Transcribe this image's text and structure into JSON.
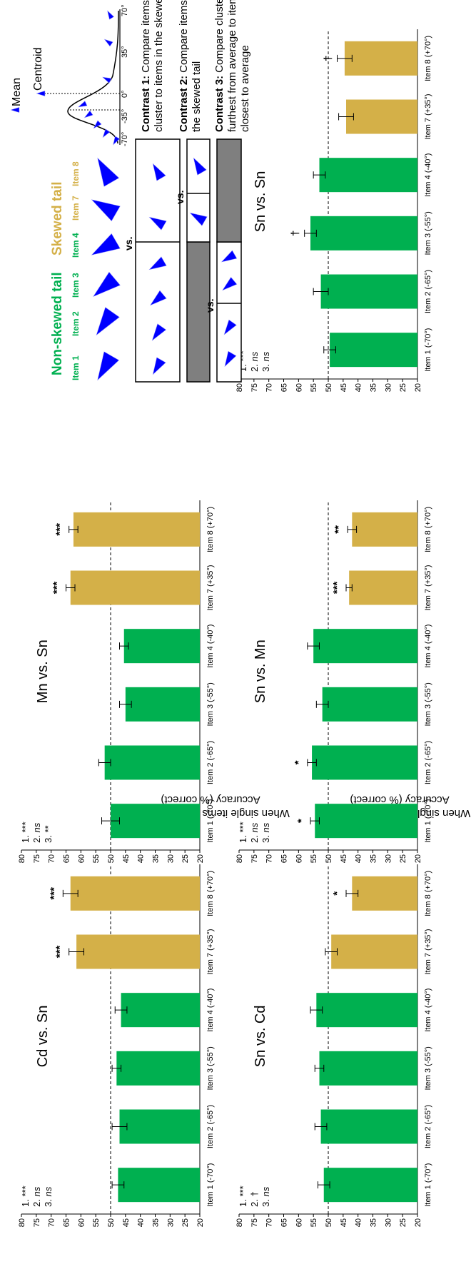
{
  "colors": {
    "non_skewed": "#00b050",
    "skewed": "#d4b048",
    "pointer": "#0000ff",
    "accent_green": "#00b050",
    "accent_gold": "#c9a227"
  },
  "y_axis_labels": {
    "distractors_line1": "Accuracy (% correct)",
    "distractors_line2": "When single items are distractors",
    "targets_line1": "Accuracy (% correct)",
    "targets_line2": "When single items are targets"
  },
  "legend": {
    "non_skewed_title": "Non-skewed tail",
    "skewed_title": "Skewed tail",
    "items": [
      "Item 1",
      "Item 2",
      "Item 3",
      "Item 4",
      "Item 7",
      "Item 8"
    ],
    "vs": "vs.",
    "contrasts": [
      {
        "label": "Contrast 1:",
        "line1": "Compare items in",
        "line2": "cluster to items in the skewed tail",
        "line3": ""
      },
      {
        "label": "Contrast 2:",
        "line1": "Compare items within",
        "line2": "the skewed tail",
        "line3": ""
      },
      {
        "label": "Contrast 3:",
        "line1": "Compare cluster items",
        "line2": "furthest from average to items",
        "line3": "closest to average"
      }
    ]
  },
  "distribution": {
    "mean_label": "Mean",
    "centroid_label": "Centroid",
    "ticks": [
      "-70°",
      "-35°",
      "0°",
      "35°",
      "70°"
    ]
  },
  "chart_data": [
    {
      "type": "bar",
      "title": "Cd vs. Sn",
      "row": "distractors",
      "categories": [
        "Item 1 (-70°)",
        "Item 2 (-65°)",
        "Item 3 (-55°)",
        "Item 4 (-40°)",
        "Item 7 (+35°)",
        "Item 8 (+70°)"
      ],
      "values": [
        47.5,
        47,
        48,
        46.5,
        61.5,
        63.5
      ],
      "errors": [
        2,
        2.5,
        1.5,
        2,
        2.5,
        2.5
      ],
      "bar_colors": [
        "#00b050",
        "#00b050",
        "#00b050",
        "#00b050",
        "#d4b048",
        "#d4b048"
      ],
      "significance": [
        "",
        "",
        "",
        "",
        "***",
        "***"
      ],
      "stats": [
        {
          "n": "1.",
          "v": "***",
          "italic": false
        },
        {
          "n": "2.",
          "v": "ns",
          "italic": true
        },
        {
          "n": "3.",
          "v": "ns",
          "italic": true
        }
      ],
      "ylim": [
        20,
        80
      ],
      "yticks": [
        20,
        25,
        30,
        35,
        40,
        45,
        50,
        55,
        60,
        65,
        70,
        75,
        80
      ],
      "reference_line": 50
    },
    {
      "type": "bar",
      "title": "Mn vs. Sn",
      "row": "distractors",
      "categories": [
        "Item 1 (-70°)",
        "Item 2 (-65°)",
        "Item 3 (-55°)",
        "Item 4 (-40°)",
        "Item 7 (+35°)",
        "Item 8 (+70°)"
      ],
      "values": [
        50,
        52,
        45,
        45.5,
        63.5,
        62.5
      ],
      "errors": [
        3,
        2,
        2,
        1.5,
        1.5,
        1.5
      ],
      "bar_colors": [
        "#00b050",
        "#00b050",
        "#00b050",
        "#00b050",
        "#d4b048",
        "#d4b048"
      ],
      "significance": [
        "",
        "",
        "",
        "",
        "***",
        "***"
      ],
      "stats": [
        {
          "n": "1.",
          "v": "***",
          "italic": false
        },
        {
          "n": "2.",
          "v": "ns",
          "italic": true
        },
        {
          "n": "3.",
          "v": "**",
          "italic": false
        }
      ],
      "ylim": [
        20,
        80
      ],
      "yticks": [
        20,
        25,
        30,
        35,
        40,
        45,
        50,
        55,
        60,
        65,
        70,
        75,
        80
      ],
      "reference_line": 50
    },
    {
      "type": "bar",
      "title": "Sn vs. Cd",
      "row": "targets",
      "categories": [
        "Item 1 (-70°)",
        "Item 2 (-65°)",
        "Item 3 (-55°)",
        "Item 4 (-40°)",
        "Item 7 (+35°)",
        "Item 8 (+70°)"
      ],
      "values": [
        51.5,
        52.5,
        53,
        54,
        49,
        42
      ],
      "errors": [
        2,
        2,
        1.5,
        2,
        2,
        2
      ],
      "bar_colors": [
        "#00b050",
        "#00b050",
        "#00b050",
        "#00b050",
        "#d4b048",
        "#d4b048"
      ],
      "significance": [
        "",
        "",
        "",
        "",
        "",
        "*"
      ],
      "stats": [
        {
          "n": "1.",
          "v": "***",
          "italic": false
        },
        {
          "n": "2.",
          "v": "†",
          "italic": false
        },
        {
          "n": "3.",
          "v": "ns",
          "italic": true
        }
      ],
      "ylim": [
        20,
        80
      ],
      "yticks": [
        20,
        25,
        30,
        35,
        40,
        45,
        50,
        55,
        60,
        65,
        70,
        75,
        80
      ],
      "reference_line": 50
    },
    {
      "type": "bar",
      "title": "Sn vs. Mn",
      "row": "targets",
      "categories": [
        "Item 1 (-70°)",
        "Item 2 (-65°)",
        "Item 3 (-55°)",
        "Item 4 (-40°)",
        "Item 7 (+35°)",
        "Item 8 (+70°)"
      ],
      "values": [
        54.5,
        55.5,
        52,
        55,
        43,
        42
      ],
      "errors": [
        1.5,
        1.5,
        2,
        2,
        1,
        1.5
      ],
      "bar_colors": [
        "#00b050",
        "#00b050",
        "#00b050",
        "#00b050",
        "#d4b048",
        "#d4b048"
      ],
      "significance": [
        "*",
        "*",
        "",
        "",
        "***",
        "**"
      ],
      "stats": [
        {
          "n": "1.",
          "v": "***",
          "italic": false
        },
        {
          "n": "2.",
          "v": "ns",
          "italic": true
        },
        {
          "n": "3.",
          "v": "ns",
          "italic": true
        }
      ],
      "ylim": [
        20,
        80
      ],
      "yticks": [
        20,
        25,
        30,
        35,
        40,
        45,
        50,
        55,
        60,
        65,
        70,
        75,
        80
      ],
      "reference_line": 50
    },
    {
      "type": "bar",
      "title": "Sn vs. Sn",
      "row": "targets",
      "categories": [
        "Item 1 (-70°)",
        "Item 2 (-65°)",
        "Item 3 (-55°)",
        "Item 4 (-40°)",
        "Item 7 (+35°)",
        "Item 8 (+70°)"
      ],
      "values": [
        49.5,
        52.5,
        56,
        53,
        44,
        44.5
      ],
      "errors": [
        2,
        2.5,
        2,
        2,
        2.5,
        2.5
      ],
      "bar_colors": [
        "#00b050",
        "#00b050",
        "#00b050",
        "#00b050",
        "#d4b048",
        "#d4b048"
      ],
      "significance": [
        "",
        "",
        "†",
        "",
        "",
        "†"
      ],
      "stats": [
        {
          "n": "1.",
          "v": "***",
          "italic": false
        },
        {
          "n": "2.",
          "v": "ns",
          "italic": true
        },
        {
          "n": "3.",
          "v": "ns",
          "italic": true
        }
      ],
      "ylim": [
        20,
        80
      ],
      "yticks": [
        20,
        25,
        30,
        35,
        40,
        45,
        50,
        55,
        60,
        65,
        70,
        75,
        80
      ],
      "reference_line": 50
    }
  ]
}
